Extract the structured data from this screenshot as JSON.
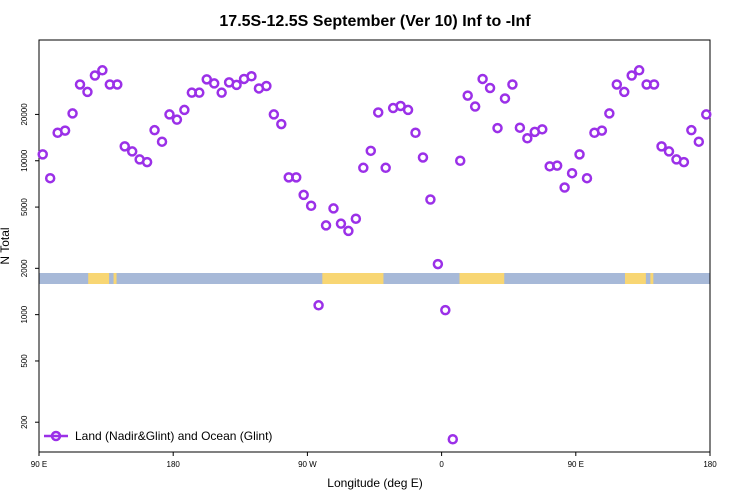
{
  "chart_data": {
    "type": "scatter",
    "title": "17.5S-12.5S September (Ver 10)   Inf to -Inf",
    "xlabel": "Longitude (deg E)",
    "ylabel": "N Total",
    "y_scale": "log",
    "xlim": [
      "90 E",
      "180 (wrapping east)"
    ],
    "x_ticks": [
      "90 E",
      "180",
      "90 W",
      "0",
      "90 E",
      "180"
    ],
    "y_ticks": [
      "200",
      "500",
      "1000",
      "2000",
      "5000",
      "10000",
      "20000"
    ],
    "ylim": [
      130,
      60000
    ],
    "grid": false,
    "legend_position": "bottom-left",
    "series": [
      {
        "name": "Land (Nadir&Glint) and Ocean (Glint)",
        "color": "#9b30e8",
        "marker": "open-circle",
        "points": [
          {
            "lon": 92.5,
            "n": 11000
          },
          {
            "lon": 97.5,
            "n": 7700
          },
          {
            "lon": 102.5,
            "n": 15200
          },
          {
            "lon": 107.5,
            "n": 15700
          },
          {
            "lon": 112.5,
            "n": 20300
          },
          {
            "lon": 117.5,
            "n": 31300
          },
          {
            "lon": 122.5,
            "n": 28000
          },
          {
            "lon": 127.5,
            "n": 35800
          },
          {
            "lon": 132.5,
            "n": 38700
          },
          {
            "lon": 137.5,
            "n": 31300
          },
          {
            "lon": 142.5,
            "n": 31300
          },
          {
            "lon": 147.5,
            "n": 12400
          },
          {
            "lon": 152.5,
            "n": 11500
          },
          {
            "lon": 157.5,
            "n": 10200
          },
          {
            "lon": 162.5,
            "n": 9800
          },
          {
            "lon": 167.5,
            "n": 15800
          },
          {
            "lon": 172.5,
            "n": 13300
          },
          {
            "lon": 177.5,
            "n": 20000
          },
          {
            "lon": -177.5,
            "n": 18500
          },
          {
            "lon": -172.5,
            "n": 21400
          },
          {
            "lon": -167.5,
            "n": 27700
          },
          {
            "lon": -162.5,
            "n": 27700
          },
          {
            "lon": -157.5,
            "n": 33800
          },
          {
            "lon": -152.5,
            "n": 31800
          },
          {
            "lon": -147.5,
            "n": 27700
          },
          {
            "lon": -142.5,
            "n": 32300
          },
          {
            "lon": -137.5,
            "n": 31100
          },
          {
            "lon": -132.5,
            "n": 34000
          },
          {
            "lon": -127.5,
            "n": 35400
          },
          {
            "lon": -122.5,
            "n": 29500
          },
          {
            "lon": -117.5,
            "n": 30600
          },
          {
            "lon": -112.5,
            "n": 20000
          },
          {
            "lon": -107.5,
            "n": 17300
          },
          {
            "lon": -102.5,
            "n": 7800
          },
          {
            "lon": -97.5,
            "n": 7800
          },
          {
            "lon": -92.5,
            "n": 6000
          },
          {
            "lon": -87.5,
            "n": 5100
          },
          {
            "lon": -82.5,
            "n": 1150
          },
          {
            "lon": -77.5,
            "n": 3800
          },
          {
            "lon": -72.5,
            "n": 4900
          },
          {
            "lon": -67.5,
            "n": 3900
          },
          {
            "lon": -62.5,
            "n": 3500
          },
          {
            "lon": -57.5,
            "n": 4200
          },
          {
            "lon": -52.5,
            "n": 9000
          },
          {
            "lon": -47.5,
            "n": 11600
          },
          {
            "lon": -42.5,
            "n": 20600
          },
          {
            "lon": -37.5,
            "n": 9000
          },
          {
            "lon": -32.5,
            "n": 22000
          },
          {
            "lon": -27.5,
            "n": 22700
          },
          {
            "lon": -22.5,
            "n": 21400
          },
          {
            "lon": -17.5,
            "n": 15200
          },
          {
            "lon": -12.5,
            "n": 10500
          },
          {
            "lon": -7.5,
            "n": 5600
          },
          {
            "lon": -2.5,
            "n": 2130
          },
          {
            "lon": 2.5,
            "n": 1070
          },
          {
            "lon": 7.5,
            "n": 155
          },
          {
            "lon": 12.5,
            "n": 10000
          },
          {
            "lon": 17.5,
            "n": 26500
          },
          {
            "lon": 22.5,
            "n": 22500
          },
          {
            "lon": 27.5,
            "n": 34000
          },
          {
            "lon": 32.5,
            "n": 29700
          },
          {
            "lon": 37.5,
            "n": 16300
          },
          {
            "lon": 42.5,
            "n": 25400
          },
          {
            "lon": 47.5,
            "n": 31300
          },
          {
            "lon": 52.5,
            "n": 16400
          },
          {
            "lon": 57.5,
            "n": 14000
          },
          {
            "lon": 62.5,
            "n": 15400
          },
          {
            "lon": 67.5,
            "n": 16000
          },
          {
            "lon": 72.5,
            "n": 9200
          },
          {
            "lon": 77.5,
            "n": 9300
          },
          {
            "lon": 82.5,
            "n": 6700
          },
          {
            "lon": 87.5,
            "n": 8300
          },
          {
            "lon": 92.5,
            "n": 11000
          },
          {
            "lon": 97.5,
            "n": 7700
          },
          {
            "lon": 102.5,
            "n": 15200
          },
          {
            "lon": 107.5,
            "n": 15700
          },
          {
            "lon": 112.5,
            "n": 20300
          },
          {
            "lon": 117.5,
            "n": 31300
          },
          {
            "lon": 122.5,
            "n": 28000
          },
          {
            "lon": 127.5,
            "n": 35800
          },
          {
            "lon": 132.5,
            "n": 38700
          },
          {
            "lon": 137.5,
            "n": 31300
          },
          {
            "lon": 142.5,
            "n": 31300
          },
          {
            "lon": 147.5,
            "n": 12400
          },
          {
            "lon": 152.5,
            "n": 11500
          },
          {
            "lon": 157.5,
            "n": 10200
          },
          {
            "lon": 162.5,
            "n": 9800
          },
          {
            "lon": 167.5,
            "n": 15800
          },
          {
            "lon": 172.5,
            "n": 13300
          },
          {
            "lon": 177.5,
            "n": 20000
          }
        ]
      }
    ],
    "land_strip": {
      "description": "latitude-band land/ocean strip: ocean blue, land yellow",
      "ocean_color": "#a7b9d8",
      "land_color": "#f8d673",
      "land_lon_ranges_deg_e": [
        [
          123,
          137
        ],
        [
          140,
          142
        ],
        [
          -80,
          -39
        ],
        [
          12,
          42
        ],
        [
          123,
          137
        ],
        [
          140,
          142
        ]
      ]
    }
  }
}
